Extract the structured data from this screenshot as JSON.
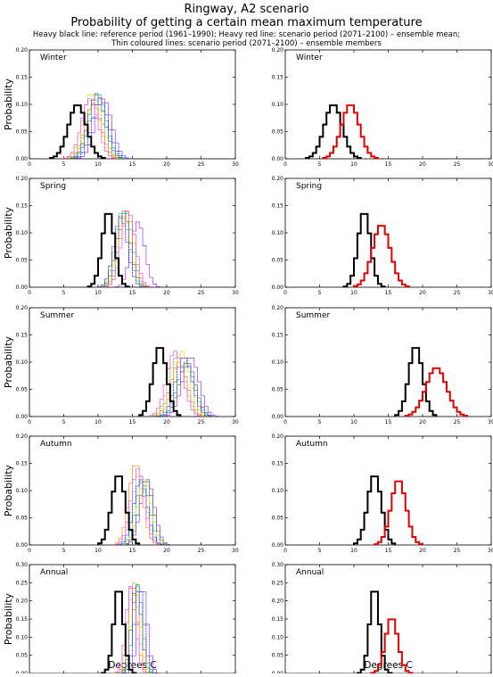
{
  "header": {
    "title": "Ringway, A2 scenario",
    "subtitle": "Probability of getting a certain mean maximum temperature",
    "notes": [
      "Heavy black line: reference period (1961–1990); Heavy red line: scenario period (2071–2100) – ensemble mean;",
      "Thin coloured lines: scenario period (2071–2100) – ensemble members"
    ]
  },
  "colors": {
    "reference": "#000000",
    "ensemble_mean": "#e00000",
    "members": [
      "#9b30ff",
      "#00c8c8",
      "#30c030",
      "#e0e000",
      "#ff8800",
      "#0000ff",
      "#ff40ff",
      "#606060"
    ]
  },
  "axes": {
    "xlabel": "Degrees C",
    "ylabel": "Probability",
    "x_ticks": [
      "0",
      "5",
      "10",
      "15",
      "20",
      "25",
      "30"
    ],
    "xlim": [
      0,
      30
    ],
    "ylim_seasonal": [
      0,
      0.2
    ],
    "y_ticks_seasonal": [
      "0.00",
      "0.05",
      "0.10",
      "0.15",
      "0.20"
    ],
    "ylim_annual": [
      0,
      0.3
    ],
    "y_ticks_annual": [
      "0.00",
      "0.05",
      "0.10",
      "0.15",
      "0.20",
      "0.25",
      "0.30"
    ]
  },
  "chart_data": [
    {
      "type": "line",
      "panel": "members",
      "label": "Winter",
      "step": 0.5,
      "ylim": [
        0,
        0.2
      ],
      "reference": {
        "mean": 7.0,
        "sd": 1.3,
        "peak": 0.1
      },
      "ensemble_mean": {
        "mean": 9.5,
        "sd": 1.3,
        "peak": 0.1
      },
      "members": [
        {
          "mean": 10.8,
          "peak": 0.11
        },
        {
          "mean": 10.0,
          "peak": 0.12
        },
        {
          "mean": 9.5,
          "peak": 0.11
        },
        {
          "mean": 9.0,
          "peak": 0.12
        },
        {
          "mean": 9.3,
          "peak": 0.1
        },
        {
          "mean": 10.3,
          "peak": 0.11
        },
        {
          "mean": 8.8,
          "peak": 0.11
        },
        {
          "mean": 9.8,
          "peak": 0.12
        }
      ],
      "member_sd": 1.2
    },
    {
      "type": "line",
      "panel": "mean",
      "label": "Winter",
      "step": 0.5,
      "ylim": [
        0,
        0.2
      ],
      "reference": {
        "mean": 7.0,
        "sd": 1.3,
        "peak": 0.1
      },
      "ensemble_mean": {
        "mean": 9.5,
        "sd": 1.3,
        "peak": 0.1
      }
    },
    {
      "type": "line",
      "panel": "members",
      "label": "Spring",
      "step": 0.5,
      "ylim": [
        0,
        0.2
      ],
      "reference": {
        "mean": 11.5,
        "sd": 0.9,
        "peak": 0.14
      },
      "ensemble_mean": {
        "mean": 14.0,
        "sd": 1.3,
        "peak": 0.115
      },
      "members": [
        {
          "mean": 15.8,
          "peak": 0.12
        },
        {
          "mean": 14.0,
          "peak": 0.14
        },
        {
          "mean": 13.5,
          "peak": 0.14
        },
        {
          "mean": 13.8,
          "peak": 0.13
        },
        {
          "mean": 14.2,
          "peak": 0.14
        },
        {
          "mean": 13.3,
          "peak": 0.13
        },
        {
          "mean": 14.4,
          "peak": 0.14
        },
        {
          "mean": 13.7,
          "peak": 0.14
        }
      ],
      "member_sd": 1.0
    },
    {
      "type": "line",
      "panel": "mean",
      "label": "Spring",
      "step": 0.5,
      "ylim": [
        0,
        0.2
      ],
      "reference": {
        "mean": 11.5,
        "sd": 0.9,
        "peak": 0.14
      },
      "ensemble_mean": {
        "mean": 14.0,
        "sd": 1.3,
        "peak": 0.115
      }
    },
    {
      "type": "line",
      "panel": "members",
      "label": "Summer",
      "step": 0.5,
      "ylim": [
        0,
        0.2
      ],
      "reference": {
        "mean": 19.0,
        "sd": 1.0,
        "peak": 0.13
      },
      "ensemble_mean": {
        "mean": 22.0,
        "sd": 1.5,
        "peak": 0.09
      },
      "members": [
        {
          "mean": 23.5,
          "peak": 0.11
        },
        {
          "mean": 22.8,
          "peak": 0.1
        },
        {
          "mean": 21.5,
          "peak": 0.11
        },
        {
          "mean": 22.2,
          "peak": 0.12
        },
        {
          "mean": 21.8,
          "peak": 0.1
        },
        {
          "mean": 22.5,
          "peak": 0.11
        },
        {
          "mean": 21.2,
          "peak": 0.12
        },
        {
          "mean": 23.0,
          "peak": 0.1
        }
      ],
      "member_sd": 1.2
    },
    {
      "type": "line",
      "panel": "mean",
      "label": "Summer",
      "step": 0.5,
      "ylim": [
        0,
        0.2
      ],
      "reference": {
        "mean": 19.0,
        "sd": 1.0,
        "peak": 0.13
      },
      "ensemble_mean": {
        "mean": 22.0,
        "sd": 1.5,
        "peak": 0.09
      }
    },
    {
      "type": "line",
      "panel": "members",
      "label": "Autumn",
      "step": 0.5,
      "ylim": [
        0,
        0.2
      ],
      "reference": {
        "mean": 13.0,
        "sd": 1.0,
        "peak": 0.13
      },
      "ensemble_mean": {
        "mean": 16.5,
        "sd": 1.1,
        "peak": 0.12
      },
      "members": [
        {
          "mean": 17.2,
          "peak": 0.12
        },
        {
          "mean": 16.5,
          "peak": 0.12
        },
        {
          "mean": 16.0,
          "peak": 0.13
        },
        {
          "mean": 16.8,
          "peak": 0.12
        },
        {
          "mean": 15.5,
          "peak": 0.15
        },
        {
          "mean": 16.2,
          "peak": 0.12
        },
        {
          "mean": 15.8,
          "peak": 0.14
        },
        {
          "mean": 17.0,
          "peak": 0.12
        }
      ],
      "member_sd": 1.0
    },
    {
      "type": "line",
      "panel": "mean",
      "label": "Autumn",
      "step": 0.5,
      "ylim": [
        0,
        0.2
      ],
      "reference": {
        "mean": 13.0,
        "sd": 1.0,
        "peak": 0.13
      },
      "ensemble_mean": {
        "mean": 16.5,
        "sd": 1.1,
        "peak": 0.12
      }
    },
    {
      "type": "line",
      "panel": "members",
      "label": "Annual",
      "step": 0.5,
      "ylim": [
        0,
        0.3
      ],
      "reference": {
        "mean": 13.0,
        "sd": 0.7,
        "peak": 0.24
      },
      "ensemble_mean": {
        "mean": 15.5,
        "sd": 0.9,
        "peak": 0.155
      },
      "members": [
        {
          "mean": 16.5,
          "peak": 0.24
        },
        {
          "mean": 15.8,
          "peak": 0.24
        },
        {
          "mean": 15.2,
          "peak": 0.25
        },
        {
          "mean": 15.5,
          "peak": 0.23
        },
        {
          "mean": 15.0,
          "peak": 0.25
        },
        {
          "mean": 16.0,
          "peak": 0.24
        },
        {
          "mean": 14.8,
          "peak": 0.24
        },
        {
          "mean": 15.6,
          "peak": 0.25
        }
      ],
      "member_sd": 0.7
    },
    {
      "type": "line",
      "panel": "mean",
      "label": "Annual",
      "step": 0.5,
      "ylim": [
        0,
        0.3
      ],
      "reference": {
        "mean": 13.0,
        "sd": 0.7,
        "peak": 0.24
      },
      "ensemble_mean": {
        "mean": 15.5,
        "sd": 0.9,
        "peak": 0.155
      }
    }
  ]
}
